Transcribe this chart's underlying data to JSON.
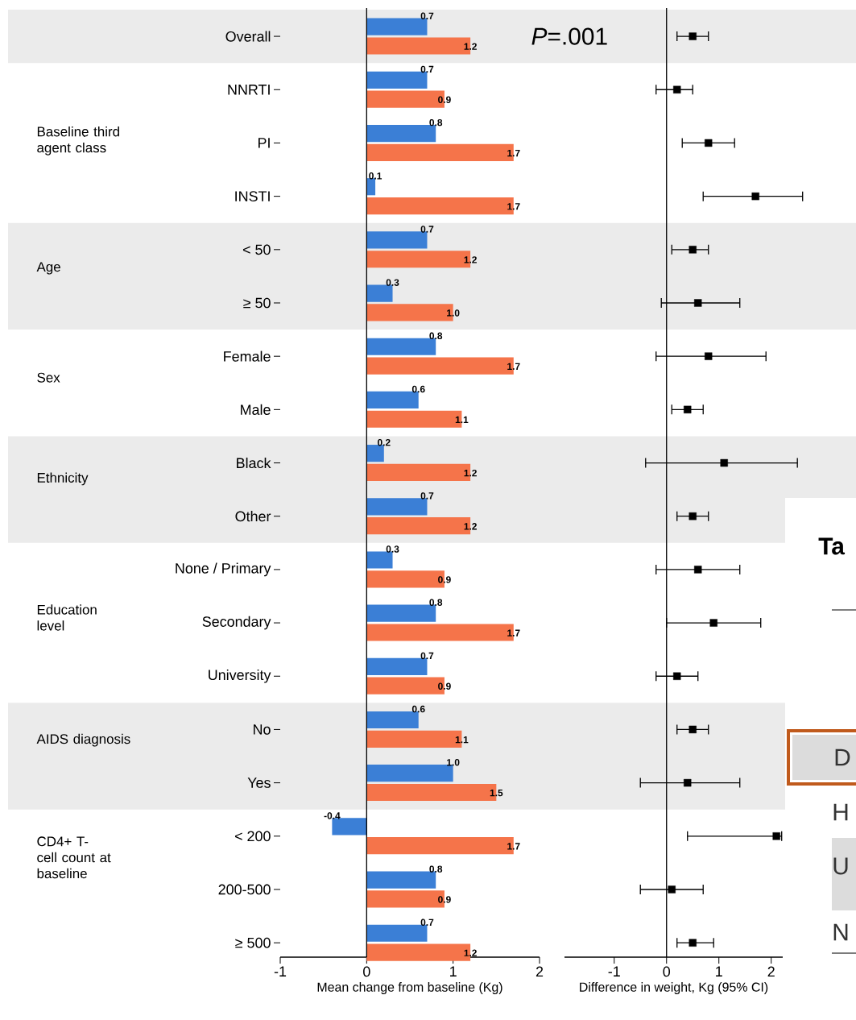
{
  "chart_data": [
    {
      "type": "bar",
      "orientation": "horizontal",
      "categories": [
        "Overall",
        "NNRTI",
        "PI",
        "INSTI",
        "< 50",
        "≥ 50",
        "Female",
        "Male",
        "Black",
        "Other",
        "None / Primary",
        "Secondary",
        "University",
        "No",
        "Yes",
        "< 200",
        "200-500",
        "≥ 500"
      ],
      "series": [
        {
          "color": "#3b7fd6",
          "values": [
            0.7,
            0.7,
            0.8,
            0.1,
            0.7,
            0.3,
            0.8,
            0.6,
            0.2,
            0.7,
            0.3,
            0.8,
            0.7,
            0.6,
            1.0,
            -0.4,
            0.8,
            0.7
          ],
          "value_labels": [
            "0.7",
            "0.7",
            "0.8",
            "0.1",
            "0.7",
            "0.3",
            "0.8",
            "0.6",
            "0.2",
            "0.7",
            "0.3",
            "0.8",
            "0.7",
            "0.6",
            "1.0",
            "-0.4",
            "0.8",
            "0.7"
          ]
        },
        {
          "color": "#f5744a",
          "values": [
            1.2,
            0.9,
            1.7,
            1.7,
            1.2,
            1.0,
            1.7,
            1.1,
            1.2,
            1.2,
            0.9,
            1.7,
            0.9,
            1.1,
            1.5,
            1.7,
            0.9,
            1.2
          ],
          "value_labels": [
            "1.2",
            "0.9",
            "1.7",
            "1.7",
            "1.2",
            "1.0",
            "1.7",
            "1.1",
            "1.2",
            "1.2",
            "0.9",
            "1.7",
            "0.9",
            "1.1",
            "1.5",
            "1.7",
            "0.9",
            "1.2"
          ]
        }
      ],
      "xlim": [
        -1,
        2
      ],
      "xticks": [
        -1,
        0,
        1,
        2
      ],
      "xlabel": "Mean change from baseline (Kg)",
      "ref_lines": [
        {
          "axis": "x",
          "value": 0,
          "color": "#000000"
        }
      ],
      "bands": [
        {
          "axis": "y",
          "from": "Overall",
          "to": "Overall",
          "color": "#ebebeb"
        },
        {
          "axis": "y",
          "from": "< 50",
          "to": "≥ 50",
          "color": "#ebebeb"
        },
        {
          "axis": "y",
          "from": "Black",
          "to": "Other",
          "color": "#ebebeb"
        },
        {
          "axis": "y",
          "from": "No",
          "to": "Yes",
          "color": "#ebebeb"
        }
      ],
      "annotations": [
        "Baseline third agent class",
        "Age",
        "Sex",
        "Ethnicity",
        "Education level",
        "AIDS diagnosis",
        "CD4+ T-cell count at baseline"
      ]
    },
    {
      "type": "scatter",
      "orientation": "horizontal",
      "categories": [
        "Overall",
        "NNRTI",
        "PI",
        "INSTI",
        "< 50",
        "≥ 50",
        "Female",
        "Male",
        "Black",
        "Other",
        "None / Primary",
        "Secondary",
        "University",
        "No",
        "Yes",
        "< 200",
        "200-500",
        "≥ 500"
      ],
      "tick_labels": "x",
      "series": [
        {
          "color": "#000000",
          "values": [
            0.5,
            0.2,
            0.8,
            1.7,
            0.5,
            0.6,
            0.8,
            0.4,
            1.1,
            0.5,
            0.6,
            0.9,
            0.2,
            0.5,
            0.4,
            2.1,
            0.1,
            0.5
          ],
          "errors": [
            [
              0.2,
              0.8
            ],
            [
              -0.2,
              0.5
            ],
            [
              0.3,
              1.3
            ],
            [
              0.7,
              2.6
            ],
            [
              0.1,
              0.8
            ],
            [
              -0.1,
              1.4
            ],
            [
              -0.2,
              1.9
            ],
            [
              0.1,
              0.7
            ],
            [
              -0.4,
              2.5
            ],
            [
              0.2,
              0.8
            ],
            [
              -0.2,
              1.4
            ],
            [
              0,
              1.8
            ],
            [
              -0.2,
              0.6
            ],
            [
              0.2,
              0.8
            ],
            [
              -0.5,
              1.4
            ],
            [
              0.4,
              2.2
            ],
            [
              -0.5,
              0.7
            ],
            [
              0.2,
              0.9
            ]
          ]
        }
      ],
      "marker": "square",
      "xlim": [
        -1.95,
        2.22
      ],
      "xticks": [
        -1,
        0,
        1,
        2
      ],
      "xlabel": "Difference in weight, Kg (95% CI)",
      "ref_lines": [
        {
          "axis": "x",
          "value": 0,
          "color": "#000000"
        }
      ],
      "bands": [
        {
          "axis": "y",
          "from": "Overall",
          "to": "Overall",
          "color": "#ebebeb"
        },
        {
          "axis": "y",
          "from": "< 50",
          "to": "≥ 50",
          "color": "#ebebeb"
        },
        {
          "axis": "y",
          "from": "Black",
          "to": "Other",
          "color": "#ebebeb"
        },
        {
          "axis": "y",
          "from": "No",
          "to": "Yes",
          "color": "#ebebeb"
        }
      ],
      "annotations": [
        "*P*=.001"
      ]
    },
    {
      "type": "other",
      "annotations": [
        "Ta",
        "D",
        "H",
        "U",
        "N"
      ]
    }
  ]
}
